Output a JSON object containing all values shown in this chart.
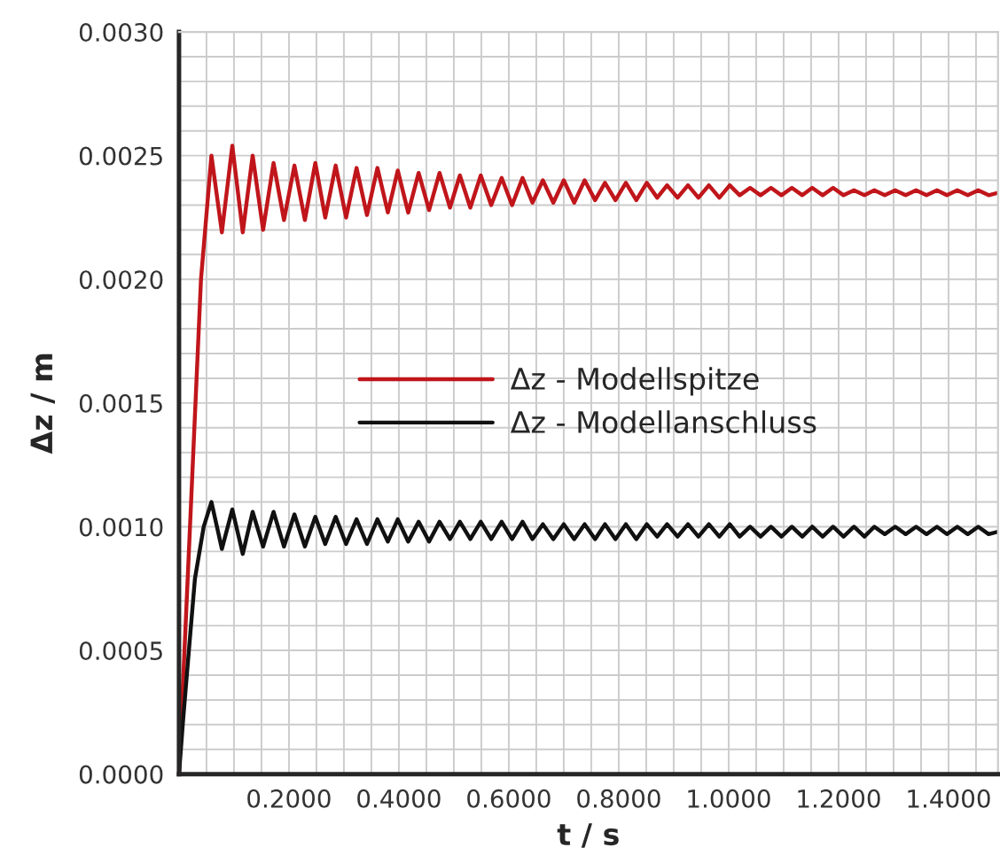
{
  "chart_data": {
    "type": "line",
    "xlabel": "t / s",
    "ylabel": "Δz / m",
    "xlim": [
      0,
      1.49
    ],
    "ylim": [
      0,
      0.003
    ],
    "xticks": [
      {
        "value": 0.2,
        "label": "0.2000"
      },
      {
        "value": 0.4,
        "label": "0.4000"
      },
      {
        "value": 0.6,
        "label": "0.6000"
      },
      {
        "value": 0.8,
        "label": "0.8000"
      },
      {
        "value": 1.0,
        "label": "1.0000"
      },
      {
        "value": 1.2,
        "label": "1.2000"
      },
      {
        "value": 1.4,
        "label": "1.4000"
      }
    ],
    "yticks": [
      {
        "value": 0,
        "label": "0.0000"
      },
      {
        "value": 0.0005,
        "label": "0.0005"
      },
      {
        "value": 0.001,
        "label": "0.0010"
      },
      {
        "value": 0.0015,
        "label": "0.0015"
      },
      {
        "value": 0.002,
        "label": "0.0020"
      },
      {
        "value": 0.0025,
        "label": "0.0025"
      },
      {
        "value": 0.003,
        "label": "0.0030"
      }
    ],
    "grid": true,
    "legend": "center",
    "marker": "none",
    "line_style": "solid",
    "series": [
      {
        "name": "Δz - Modellspitze",
        "color": "#c0161b",
        "x": [
          0,
          0.04,
          0.059,
          0.078,
          0.097,
          0.116,
          0.134,
          0.153,
          0.172,
          0.191,
          0.21,
          0.229,
          0.248,
          0.266,
          0.285,
          0.304,
          0.323,
          0.342,
          0.361,
          0.38,
          0.398,
          0.417,
          0.436,
          0.455,
          0.474,
          0.493,
          0.511,
          0.53,
          0.549,
          0.568,
          0.587,
          0.606,
          0.625,
          0.643,
          0.662,
          0.681,
          0.7,
          0.719,
          0.738,
          0.757,
          0.775,
          0.794,
          0.813,
          0.832,
          0.851,
          0.87,
          0.888,
          0.907,
          0.926,
          0.945,
          0.964,
          0.983,
          1.002,
          1.02,
          1.039,
          1.058,
          1.077,
          1.096,
          1.115,
          1.134,
          1.152,
          1.171,
          1.19,
          1.209,
          1.228,
          1.247,
          1.265,
          1.284,
          1.303,
          1.322,
          1.341,
          1.36,
          1.379,
          1.397,
          1.416,
          1.435,
          1.454,
          1.473,
          1.49
        ],
        "values": [
          0,
          0.002,
          0.0025,
          0.00219,
          0.00254,
          0.00219,
          0.0025,
          0.0022,
          0.00247,
          0.00224,
          0.00246,
          0.00224,
          0.00247,
          0.00225,
          0.00246,
          0.00225,
          0.00245,
          0.00226,
          0.00245,
          0.00227,
          0.00244,
          0.00227,
          0.00243,
          0.00228,
          0.00243,
          0.00229,
          0.00242,
          0.00229,
          0.00242,
          0.0023,
          0.00241,
          0.0023,
          0.00241,
          0.00231,
          0.0024,
          0.00231,
          0.0024,
          0.00231,
          0.0024,
          0.00232,
          0.00239,
          0.00232,
          0.00239,
          0.00232,
          0.00239,
          0.00233,
          0.00238,
          0.00233,
          0.00238,
          0.00233,
          0.00238,
          0.00233,
          0.00238,
          0.00234,
          0.00237,
          0.00234,
          0.00237,
          0.00234,
          0.00237,
          0.00234,
          0.00237,
          0.00234,
          0.00237,
          0.00234,
          0.00236,
          0.00234,
          0.00236,
          0.00234,
          0.00236,
          0.00234,
          0.00236,
          0.00234,
          0.00236,
          0.00234,
          0.00236,
          0.00234,
          0.00236,
          0.00234,
          0.00235
        ]
      },
      {
        "name": "Δz - Modellanschluss",
        "color": "#111111",
        "x": [
          0,
          0.0075,
          0.018,
          0.029,
          0.045,
          0.059,
          0.078,
          0.097,
          0.116,
          0.134,
          0.153,
          0.172,
          0.191,
          0.21,
          0.229,
          0.248,
          0.266,
          0.285,
          0.304,
          0.323,
          0.342,
          0.361,
          0.38,
          0.398,
          0.417,
          0.436,
          0.455,
          0.474,
          0.493,
          0.511,
          0.53,
          0.549,
          0.568,
          0.587,
          0.606,
          0.625,
          0.643,
          0.662,
          0.681,
          0.7,
          0.719,
          0.738,
          0.757,
          0.775,
          0.794,
          0.813,
          0.832,
          0.851,
          0.87,
          0.888,
          0.907,
          0.926,
          0.945,
          0.964,
          0.983,
          1.002,
          1.02,
          1.039,
          1.058,
          1.077,
          1.096,
          1.115,
          1.134,
          1.152,
          1.171,
          1.19,
          1.209,
          1.228,
          1.247,
          1.265,
          1.284,
          1.303,
          1.322,
          1.341,
          1.36,
          1.379,
          1.397,
          1.416,
          1.435,
          1.454,
          1.473,
          1.49
        ],
        "values": [
          0,
          0.00022,
          0.0005,
          0.00079,
          0.001,
          0.0011,
          0.00091,
          0.00107,
          0.00089,
          0.00106,
          0.00092,
          0.00106,
          0.00092,
          0.00105,
          0.00092,
          0.00104,
          0.00093,
          0.00104,
          0.00093,
          0.00103,
          0.00093,
          0.00103,
          0.00094,
          0.00103,
          0.00094,
          0.00102,
          0.00094,
          0.00102,
          0.00095,
          0.00102,
          0.00095,
          0.00102,
          0.00095,
          0.00102,
          0.00095,
          0.00102,
          0.00095,
          0.00101,
          0.00095,
          0.00101,
          0.00095,
          0.00101,
          0.00095,
          0.00101,
          0.00095,
          0.00101,
          0.00095,
          0.00101,
          0.00096,
          0.00101,
          0.00096,
          0.00101,
          0.00096,
          0.00101,
          0.00096,
          0.00101,
          0.00096,
          0.001,
          0.00096,
          0.001,
          0.00096,
          0.001,
          0.00096,
          0.001,
          0.00096,
          0.001,
          0.00096,
          0.001,
          0.00096,
          0.001,
          0.00097,
          0.001,
          0.00097,
          0.001,
          0.00097,
          0.001,
          0.00097,
          0.001,
          0.00097,
          0.001,
          0.00097,
          0.00098
        ]
      }
    ]
  }
}
